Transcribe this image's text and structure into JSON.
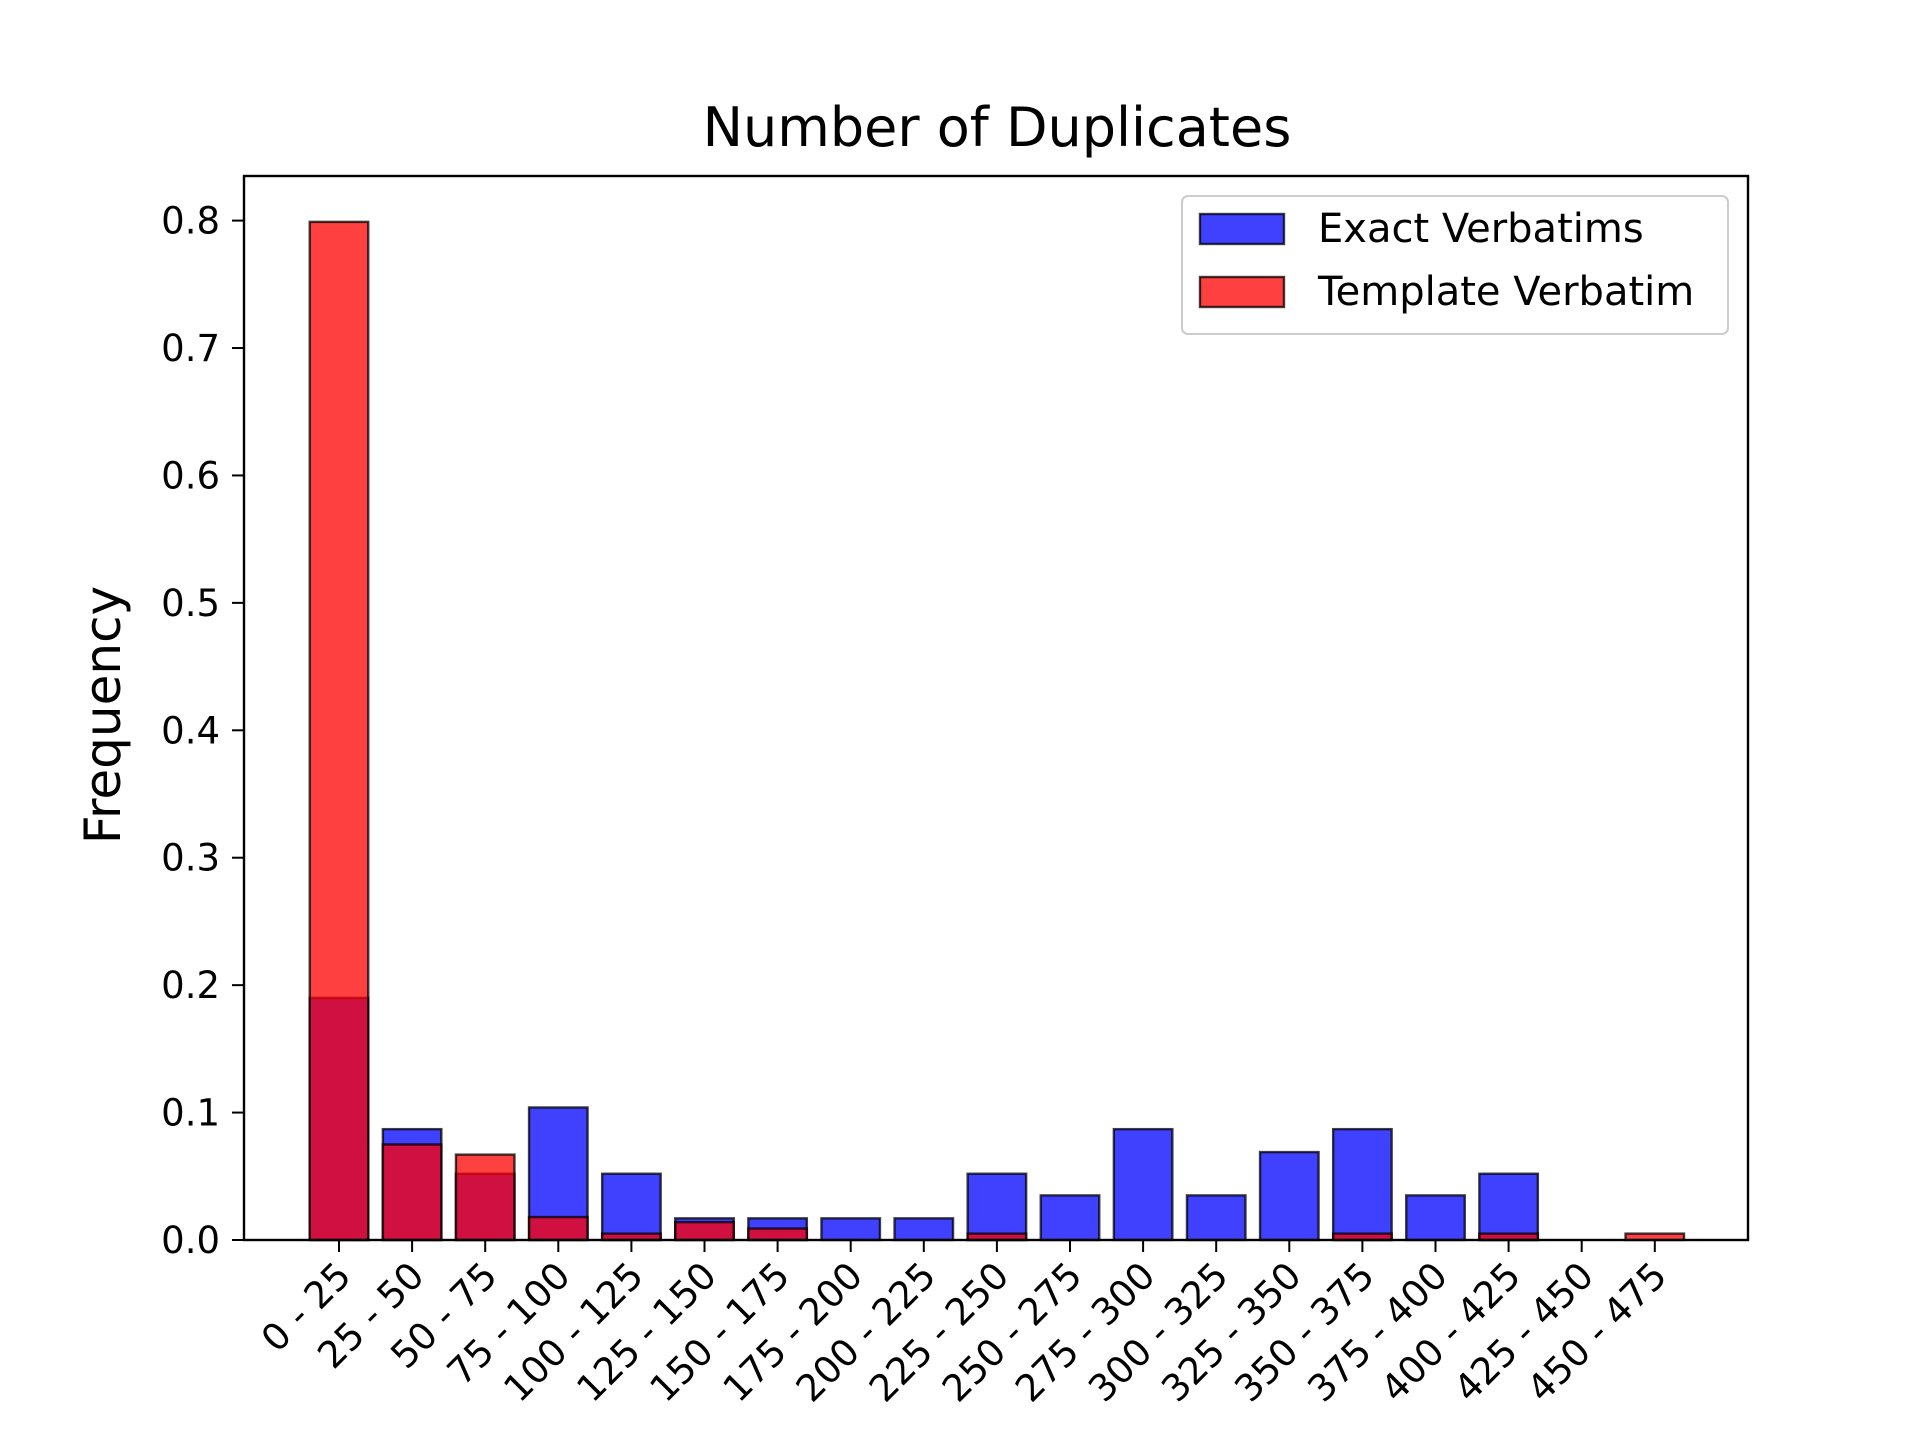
{
  "chart_data": {
    "type": "bar",
    "title": "Number of Duplicates",
    "xlabel": "",
    "ylabel": "Frequency",
    "ylim": [
      0,
      0.835
    ],
    "yticks": [
      "0.0",
      "0.1",
      "0.2",
      "0.3",
      "0.4",
      "0.5",
      "0.6",
      "0.7",
      "0.8"
    ],
    "grid": false,
    "legend_position": "top-right",
    "categories": [
      "0 - 25",
      "25 - 50",
      "50 - 75",
      "75 - 100",
      "100 - 125",
      "125 - 150",
      "150 - 175",
      "175 - 200",
      "200 - 225",
      "225 - 250",
      "250 - 275",
      "275 - 300",
      "300 - 325",
      "325 - 350",
      "350 - 375",
      "375 - 400",
      "400 - 425",
      "425 - 450",
      "450 - 475"
    ],
    "series": [
      {
        "name": "Exact Verbatims",
        "color": "#0000ff",
        "values": [
          0.19,
          0.087,
          0.052,
          0.104,
          0.052,
          0.017,
          0.017,
          0.017,
          0.017,
          0.052,
          0.035,
          0.087,
          0.035,
          0.069,
          0.087,
          0.035,
          0.052,
          0.0,
          0.0
        ]
      },
      {
        "name": "Template Verbatim",
        "color": "#ff0000",
        "values": [
          0.799,
          0.075,
          0.067,
          0.018,
          0.005,
          0.014,
          0.009,
          0.0,
          0.0,
          0.005,
          0.0,
          0.0,
          0.0,
          0.0,
          0.005,
          0.0,
          0.005,
          0.0,
          0.005
        ]
      }
    ]
  }
}
